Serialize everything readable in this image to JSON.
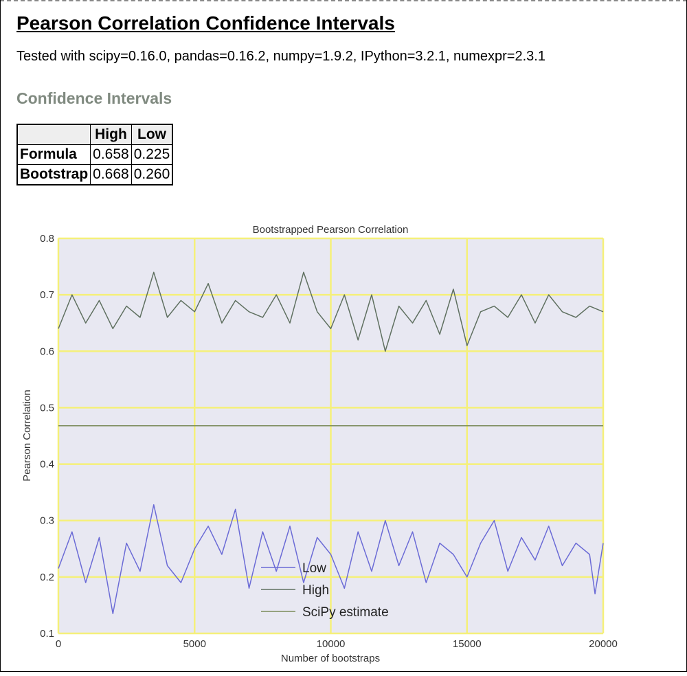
{
  "page": {
    "title": "Pearson Correlation Confidence Intervals",
    "versions": "Tested with scipy=0.16.0, pandas=0.16.2, numpy=1.9.2, IPython=3.2.1, numexpr=2.3.1",
    "section_title": "Confidence Intervals"
  },
  "table": {
    "headers": [
      "",
      "High",
      "Low"
    ],
    "rows": [
      {
        "label": "Formula",
        "high": "0.658",
        "low": "0.225"
      },
      {
        "label": "Bootstrap",
        "high": "0.668",
        "low": "0.260"
      }
    ]
  },
  "colors": {
    "plot_bg": "#e8e8f2",
    "grid": "#f5f07a",
    "low": "#6b6bd6",
    "high": "#5f7060",
    "scipy": "#7a8a5a",
    "text": "#333333"
  },
  "chart_data": {
    "type": "line",
    "title": "Bootstrapped Pearson Correlation",
    "xlabel": "Number of bootstraps",
    "ylabel": "Pearson Correlation",
    "xlim": [
      0,
      20000
    ],
    "ylim": [
      0.1,
      0.8
    ],
    "xticks": [
      "0",
      "5000",
      "10000",
      "15000",
      "20000"
    ],
    "yticks": [
      "0.1",
      "0.2",
      "0.3",
      "0.4",
      "0.5",
      "0.6",
      "0.7",
      "0.8"
    ],
    "grid": true,
    "legend_position": "lower-center",
    "legend": [
      "Low",
      "High",
      "SciPy estimate"
    ],
    "series": [
      {
        "name": "Low",
        "x": [
          0,
          500,
          1000,
          1500,
          2000,
          2500,
          3000,
          3500,
          4000,
          4500,
          5000,
          5500,
          6000,
          6500,
          7000,
          7500,
          8000,
          8500,
          9000,
          9500,
          10000,
          10500,
          11000,
          11500,
          12000,
          12500,
          13000,
          13500,
          14000,
          14500,
          15000,
          15500,
          16000,
          16500,
          17000,
          17500,
          18000,
          18500,
          19000,
          19500,
          19700,
          20000
        ],
        "values": [
          0.215,
          0.28,
          0.19,
          0.27,
          0.135,
          0.26,
          0.21,
          0.328,
          0.22,
          0.19,
          0.25,
          0.29,
          0.24,
          0.32,
          0.18,
          0.28,
          0.21,
          0.29,
          0.19,
          0.27,
          0.24,
          0.18,
          0.28,
          0.21,
          0.3,
          0.22,
          0.28,
          0.19,
          0.26,
          0.24,
          0.2,
          0.26,
          0.3,
          0.21,
          0.27,
          0.23,
          0.29,
          0.22,
          0.26,
          0.24,
          0.17,
          0.26
        ]
      },
      {
        "name": "High",
        "x": [
          0,
          500,
          1000,
          1500,
          2000,
          2500,
          3000,
          3500,
          4000,
          4500,
          5000,
          5500,
          6000,
          6500,
          7000,
          7500,
          8000,
          8500,
          9000,
          9500,
          10000,
          10500,
          11000,
          11500,
          12000,
          12500,
          13000,
          13500,
          14000,
          14500,
          15000,
          15500,
          16000,
          16500,
          17000,
          17500,
          18000,
          18500,
          19000,
          19500,
          20000
        ],
        "values": [
          0.64,
          0.7,
          0.65,
          0.69,
          0.64,
          0.68,
          0.66,
          0.74,
          0.66,
          0.69,
          0.67,
          0.72,
          0.65,
          0.69,
          0.67,
          0.66,
          0.7,
          0.65,
          0.74,
          0.67,
          0.64,
          0.7,
          0.62,
          0.7,
          0.6,
          0.68,
          0.65,
          0.69,
          0.63,
          0.71,
          0.61,
          0.67,
          0.68,
          0.66,
          0.7,
          0.65,
          0.7,
          0.67,
          0.66,
          0.68,
          0.67
        ]
      },
      {
        "name": "SciPy estimate",
        "x": [
          0,
          20000
        ],
        "values": [
          0.468,
          0.468
        ]
      }
    ]
  }
}
